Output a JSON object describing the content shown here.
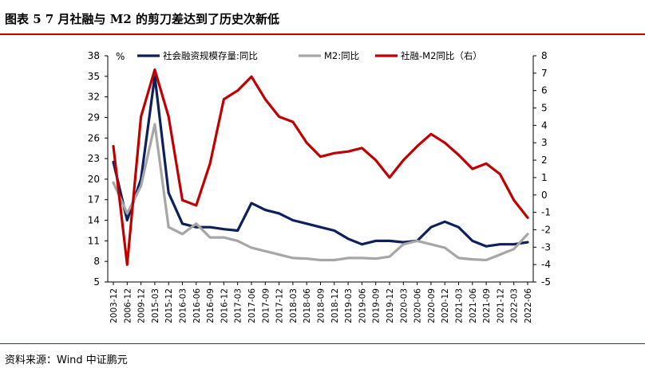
{
  "title": "图表 5    7 月社融与 M2 的剪刀差达到了历史次新低",
  "source": "资料来源：Wind    中证鹏元",
  "colors": {
    "social_financing": "#0d1f5c",
    "m2": "#a6a6a6",
    "spread": "#c00000",
    "rule": "#c00000"
  },
  "chart_data": {
    "type": "line",
    "y_left": {
      "unit": "%",
      "lim": [
        5,
        38
      ],
      "ticks": [
        5,
        8,
        11,
        14,
        17,
        20,
        23,
        26,
        29,
        32,
        35,
        38
      ]
    },
    "y_right": {
      "lim": [
        -5,
        8
      ],
      "ticks": [
        -5,
        -4,
        -3,
        -2,
        -1,
        0,
        1,
        2,
        3,
        4,
        5,
        6,
        7,
        8
      ]
    },
    "x_ticks": [
      "2003-12",
      "2006-12",
      "2009-12",
      "2015-03",
      "2015-12",
      "2016-03",
      "2016-06",
      "2016-09",
      "2016-12",
      "2017-03",
      "2017-06",
      "2017-09",
      "2017-12",
      "2018-03",
      "2018-06",
      "2018-09",
      "2018-12",
      "2019-03",
      "2019-06",
      "2019-09",
      "2019-12",
      "2020-03",
      "2020-06",
      "2020-09",
      "2020-12",
      "2021-03",
      "2021-06",
      "2021-09",
      "2021-12",
      "2022-03",
      "2022-06"
    ],
    "legend_position": "top",
    "series": [
      {
        "name": "社会融资规模存量:同比",
        "axis": "left",
        "values": [
          22.5,
          14,
          20,
          35,
          18,
          13.5,
          13,
          13,
          12.7,
          12.5,
          16.5,
          15.5,
          15,
          14,
          13.5,
          13,
          12.5,
          11.3,
          10.5,
          11,
          11,
          10.8,
          11,
          13,
          13.8,
          13,
          11,
          10.2,
          10.5,
          10.5,
          10.8
        ]
      },
      {
        "name": "M2:同比",
        "axis": "left",
        "values": [
          19.5,
          15,
          19,
          28,
          13,
          12,
          13.5,
          11.5,
          11.5,
          11,
          10,
          9.5,
          9,
          8.5,
          8.4,
          8.2,
          8.2,
          8.5,
          8.5,
          8.4,
          8.7,
          10.5,
          11,
          10.5,
          10,
          8.5,
          8.3,
          8.2,
          9,
          9.8,
          12
        ]
      },
      {
        "name": "社融-M2同比（右）",
        "axis": "right",
        "values": [
          2.8,
          -4,
          4.5,
          7.2,
          4.5,
          -0.3,
          -0.6,
          1.8,
          5.5,
          6,
          6.8,
          5.5,
          4.5,
          4.2,
          3,
          2.2,
          2.4,
          2.5,
          2.7,
          2,
          1,
          2,
          2.8,
          3.5,
          3,
          2.3,
          1.5,
          1.8,
          1.2,
          -0.3,
          -1.3
        ]
      }
    ]
  },
  "legend": [
    {
      "label": "社会融资规模存量:同比",
      "color": "#0d1f5c"
    },
    {
      "label": "M2:同比",
      "color": "#a6a6a6"
    },
    {
      "label": "社融-M2同比（右）",
      "color": "#c00000"
    }
  ]
}
